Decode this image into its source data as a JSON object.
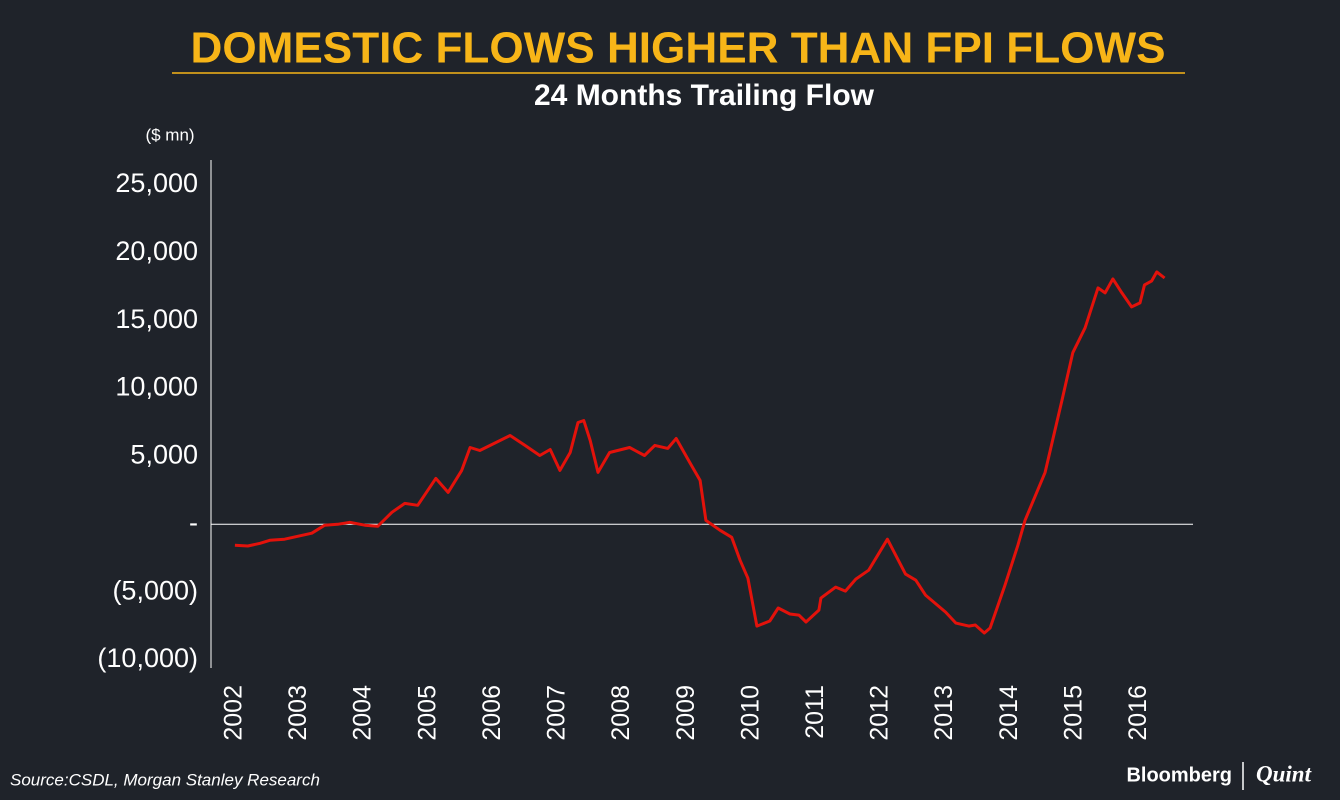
{
  "chart_data": {
    "type": "line",
    "title": "DOMESTIC FLOWS HIGHER THAN FPI FLOWS",
    "subtitle": "24 Months Trailing Flow",
    "y_label": "($ mn)",
    "source": "Source:CSDL, Morgan Stanley Research",
    "logo": [
      "Bloomberg",
      "Quint"
    ],
    "color": "#e3120b",
    "x": [
      2002.0,
      2002.2,
      2002.39,
      2002.54,
      2002.77,
      2002.98,
      2003.19,
      2003.39,
      2003.59,
      2003.78,
      2004.01,
      2004.21,
      2004.43,
      2004.63,
      2004.83,
      2005.11,
      2005.3,
      2005.51,
      2005.64,
      2005.79,
      2006.26,
      2006.49,
      2006.72,
      2006.88,
      2007.03,
      2007.19,
      2007.31,
      2007.4,
      2007.5,
      2007.62,
      2007.8,
      2008.11,
      2008.34,
      2008.5,
      2008.7,
      2008.83,
      2009.04,
      2009.2,
      2009.29,
      2009.51,
      2009.69,
      2009.82,
      2009.94,
      2010.08,
      2010.28,
      2010.41,
      2010.59,
      2010.73,
      2010.84,
      2011.04,
      2011.07,
      2011.3,
      2011.45,
      2011.61,
      2011.81,
      2012.1,
      2012.38,
      2012.54,
      2012.69,
      2013.0,
      2013.16,
      2013.36,
      2013.46,
      2013.6,
      2013.69,
      2013.92,
      2014.12,
      2014.23,
      2014.54,
      2014.8,
      2014.97,
      2015.16,
      2015.36,
      2015.47,
      2015.59,
      2015.73,
      2015.88,
      2016.01,
      2016.08,
      2016.19,
      2016.27,
      2016.39
    ],
    "values": [
      -1540,
      -1600,
      -1400,
      -1180,
      -1100,
      -880,
      -660,
      -70,
      0,
      150,
      -70,
      -150,
      880,
      1540,
      1400,
      3380,
      2350,
      3970,
      5660,
      5440,
      6540,
      5810,
      5070,
      5510,
      3970,
      5290,
      7500,
      7640,
      6170,
      3820,
      5290,
      5660,
      5070,
      5810,
      5590,
      6320,
      4560,
      3230,
      290,
      -440,
      -960,
      -2650,
      -3970,
      -7500,
      -7130,
      -6170,
      -6610,
      -6690,
      -7200,
      -6320,
      -5440,
      -4630,
      -4920,
      -4040,
      -3380,
      -1100,
      -3670,
      -4120,
      -5220,
      -6470,
      -7280,
      -7500,
      -7420,
      -8010,
      -7640,
      -4480,
      -1540,
      290,
      3820,
      9110,
      12640,
      14480,
      17420,
      17050,
      18080,
      17050,
      16020,
      16310,
      17640,
      17930,
      18600,
      18150
    ],
    "xlim": [
      2001.63,
      2016.83
    ],
    "xticks": [
      2002,
      2003,
      2004,
      2005,
      2006,
      2007,
      2008,
      2009,
      2010,
      2011,
      2012,
      2013,
      2014,
      2015,
      2016
    ],
    "ylim": [
      -10000,
      25000
    ],
    "yticks": [
      {
        "value": -10000,
        "label": "(10,000)"
      },
      {
        "value": -5000,
        "label": "(5,000)"
      },
      {
        "value": 0,
        "label": "-"
      },
      {
        "value": 5000,
        "label": "5,000"
      },
      {
        "value": 10000,
        "label": "10,000"
      },
      {
        "value": 15000,
        "label": "15,000"
      },
      {
        "value": 20000,
        "label": "20,000"
      },
      {
        "value": 25000,
        "label": "25,000"
      }
    ]
  }
}
